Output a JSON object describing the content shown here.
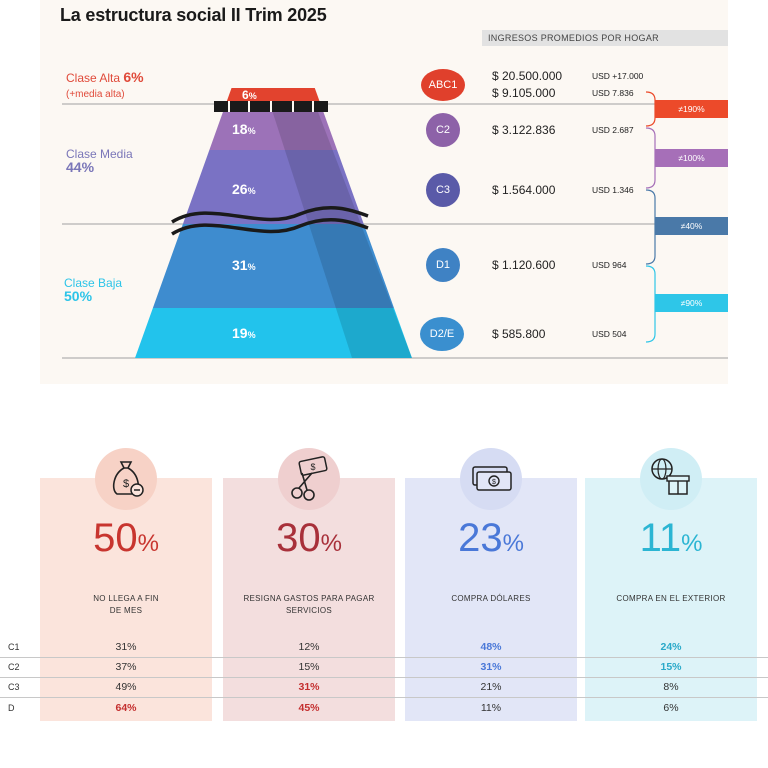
{
  "title": "La estructura social II Trim 2025",
  "header": {
    "ingresos": "INGRESOS PROMEDIOS POR HOGAR"
  },
  "classes": [
    {
      "label": "Clase Alta",
      "pct": "6%",
      "sub": "(+media alta)",
      "color": "#e04a3a"
    },
    {
      "label": "Clase Media",
      "pct": "44%",
      "color": "#7a76b8"
    },
    {
      "label": "Clase Baja",
      "pct": "50%",
      "color": "#2cc4e8"
    }
  ],
  "pyramid": [
    {
      "value": 6,
      "color": "#e2432e"
    },
    {
      "value": 18,
      "color": "#9c72b8"
    },
    {
      "value": 26,
      "color": "#7a72c4"
    },
    {
      "value": 31,
      "color": "#3e8ccf"
    },
    {
      "value": 19,
      "color": "#22c3ec"
    }
  ],
  "pct_unit": "%",
  "segments": [
    {
      "code": "ABC1",
      "color": "#e0402c",
      "amounts": [
        "$ 20.500.000",
        "$ 9.105.000"
      ],
      "usd": [
        "USD +17.000",
        "USD 7.836"
      ]
    },
    {
      "code": "C2",
      "color": "#8d62a8",
      "amounts": [
        "$ 3.122.836"
      ],
      "usd": [
        "USD 2.687"
      ]
    },
    {
      "code": "C3",
      "color": "#5a5aa8",
      "amounts": [
        "$ 1.564.000"
      ],
      "usd": [
        "USD 1.346"
      ]
    },
    {
      "code": "D1",
      "color": "#3f82c4",
      "amounts": [
        "$ 1.120.600"
      ],
      "usd": [
        "USD 964"
      ]
    },
    {
      "code": "D2/E",
      "color": "#3a8fcf",
      "amounts": [
        "$ 585.800"
      ],
      "usd": [
        "USD 504"
      ]
    }
  ],
  "diffs": [
    {
      "label": "≠190%",
      "color": "#ec4a2a"
    },
    {
      "label": "≠100%",
      "color": "#a66fb8"
    },
    {
      "label": "≠40%",
      "color": "#4a79a8"
    },
    {
      "label": "≠90%",
      "color": "#2ec6e8"
    }
  ],
  "stats": [
    {
      "value": "50",
      "unit": "%",
      "desc1": "NO LLEGA A FIN",
      "desc2": "DE MES",
      "color": "#c8352f",
      "bg": "#fbe4dc",
      "circle": "#f7d2c6"
    },
    {
      "value": "30",
      "unit": "%",
      "desc1": "RESIGNA GASTOS PARA PAGAR",
      "desc2": "SERVICIOS",
      "color": "#a8303a",
      "bg": "#f3dede",
      "circle": "#efcfcf"
    },
    {
      "value": "23",
      "unit": "%",
      "desc1": "COMPRA DÓLARES",
      "desc2": "",
      "color": "#4a78d8",
      "bg": "#e2e6f7",
      "circle": "#d6dcf3"
    },
    {
      "value": "11",
      "unit": "%",
      "desc1": "COMPRA EN EL EXTERIOR",
      "desc2": "",
      "color": "#2bb5d3",
      "bg": "#ddf3f8",
      "circle": "#d0eef5"
    }
  ],
  "table": {
    "rows": [
      {
        "label": "C1",
        "values": [
          "31%",
          "12%",
          "48%",
          "24%"
        ]
      },
      {
        "label": "C2",
        "values": [
          "37%",
          "15%",
          "31%",
          "15%"
        ]
      },
      {
        "label": "C3",
        "values": [
          "49%",
          "31%",
          "21%",
          "8%"
        ]
      },
      {
        "label": "D",
        "values": [
          "64%",
          "45%",
          "11%",
          "6%"
        ]
      }
    ]
  },
  "chart_data": {
    "type": "bar",
    "title": "La estructura social II Trim 2025",
    "categories": [
      "ABC1",
      "C2",
      "C3",
      "D1",
      "D2/E"
    ],
    "values": [
      6,
      18,
      26,
      31,
      19
    ],
    "unit": "%",
    "groups": [
      {
        "name": "Clase Alta",
        "value": 6
      },
      {
        "name": "Clase Media",
        "value": 44
      },
      {
        "name": "Clase Baja",
        "value": 50
      }
    ]
  }
}
